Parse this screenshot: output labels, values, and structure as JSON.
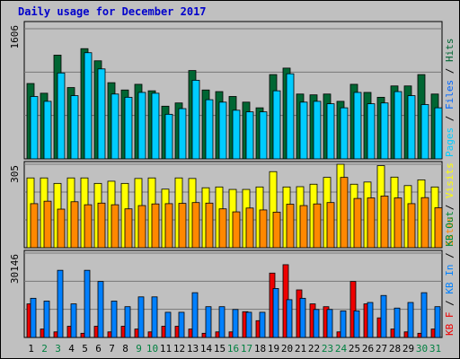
{
  "title": "Daily usage for December 2017",
  "colors": {
    "hits": "#006633",
    "files": "#0066ff",
    "pages": "#00ccff",
    "visits": "#ffff00",
    "sites": "#ff8800",
    "kb_in": "#0080ff",
    "kb_out": "#008833",
    "kb_f": "#ee0000",
    "grid": "#777777",
    "frame": "#000000",
    "weekday_label": "#000000",
    "weekend_label": "#008040"
  },
  "chart_data": [
    {
      "type": "bar",
      "y_tick_label": "1606",
      "ylim": [
        0,
        1606
      ],
      "side_label": [
        {
          "text": "Pages",
          "color_key": "pages"
        },
        {
          "text": " / ",
          "color_key": "weekday_label"
        },
        {
          "text": "Files",
          "color_key": "files"
        },
        {
          "text": " / ",
          "color_key": "weekday_label"
        },
        {
          "text": "Hits",
          "color_key": "hits"
        }
      ],
      "series": [
        {
          "name": "Hits",
          "color_key": "hits",
          "values": [
            930,
            810,
            1280,
            880,
            1360,
            1210,
            940,
            850,
            920,
            840,
            650,
            690,
            1090,
            850,
            830,
            770,
            700,
            630,
            1040,
            1120,
            800,
            790,
            800,
            710,
            920,
            820,
            760,
            900,
            900,
            1040,
            800
          ]
        },
        {
          "name": "Pages",
          "color_key": "pages",
          "values": [
            770,
            710,
            1060,
            780,
            1310,
            1110,
            800,
            760,
            820,
            810,
            550,
            620,
            970,
            730,
            700,
            600,
            580,
            580,
            840,
            1050,
            700,
            710,
            680,
            630,
            820,
            680,
            690,
            830,
            780,
            670,
            630
          ]
        }
      ]
    },
    {
      "type": "bar",
      "y_tick_label": "305",
      "ylim": [
        0,
        305
      ],
      "side_label": [
        {
          "text": "Sites",
          "color_key": "sites"
        },
        {
          "text": " / ",
          "color_key": "weekday_label"
        },
        {
          "text": "Visits",
          "color_key": "visits"
        }
      ],
      "series": [
        {
          "name": "Visits",
          "color_key": "visits",
          "values": [
            255,
            255,
            235,
            255,
            255,
            235,
            243,
            235,
            253,
            255,
            214,
            255,
            253,
            219,
            222,
            213,
            213,
            222,
            278,
            222,
            223,
            232,
            257,
            305,
            232,
            240,
            300,
            258,
            227,
            248,
            222
          ]
        },
        {
          "name": "Sites",
          "color_key": "sites",
          "values": [
            161,
            170,
            141,
            168,
            157,
            163,
            157,
            142,
            154,
            160,
            161,
            162,
            165,
            163,
            142,
            131,
            145,
            138,
            130,
            159,
            154,
            160,
            165,
            257,
            180,
            182,
            189,
            182,
            161,
            183,
            146
          ]
        }
      ]
    },
    {
      "type": "bar",
      "y_tick_label": "30146",
      "ylim": [
        0,
        30146
      ],
      "side_label": [
        {
          "text": "KB F",
          "color_key": "kb_f"
        },
        {
          "text": " / ",
          "color_key": "weekday_label"
        },
        {
          "text": "KB In",
          "color_key": "kb_in"
        },
        {
          "text": " / ",
          "color_key": "weekday_label"
        },
        {
          "text": "KB Out",
          "color_key": "kb_out"
        }
      ],
      "series": [
        {
          "name": "KB F",
          "color_key": "kb_f",
          "values": [
            12000,
            3000,
            2000,
            4000,
            1500,
            4000,
            2000,
            4000,
            3000,
            2000,
            4000,
            4000,
            3000,
            1500,
            2000,
            2000,
            9200,
            6000,
            23000,
            26000,
            17000,
            12000,
            11000,
            2000,
            20000,
            12000,
            7000,
            3000,
            2000,
            1500,
            3000
          ]
        },
        {
          "name": "KB In",
          "color_key": "kb_in",
          "values": [
            14000,
            13000,
            24000,
            12000,
            24000,
            20000,
            13000,
            11000,
            14500,
            14500,
            9000,
            9000,
            16000,
            11000,
            11000,
            10000,
            9000,
            9000,
            17500,
            13500,
            14000,
            10000,
            10000,
            9500,
            9500,
            12500,
            15000,
            10500,
            12500,
            16000,
            11000
          ]
        }
      ]
    }
  ],
  "x_axis": {
    "labels": [
      "1",
      "2",
      "3",
      "4",
      "5",
      "6",
      "7",
      "8",
      "9",
      "10",
      "11",
      "12",
      "13",
      "14",
      "15",
      "16",
      "17",
      "18",
      "19",
      "20",
      "21",
      "22",
      "23",
      "24",
      "25",
      "26",
      "27",
      "28",
      "29",
      "30",
      "31"
    ],
    "weekend_days": [
      "2",
      "3",
      "9",
      "10",
      "16",
      "17",
      "23",
      "24",
      "30",
      "31"
    ]
  }
}
